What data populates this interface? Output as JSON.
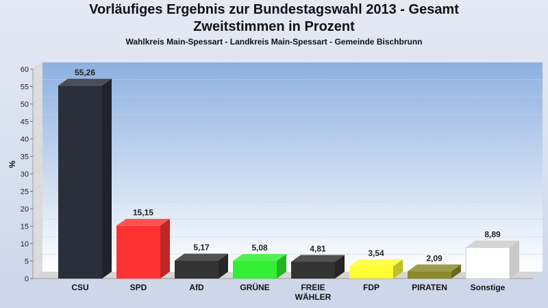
{
  "chart_data": {
    "type": "bar",
    "title": "Vorläufiges Ergebnis zur Bundestagswahl 2013 - Gesamt",
    "title2": "Zweitstimmen in Prozent",
    "subtitle": "Wahlkreis Main-Spessart - Landkreis Main-Spessart - Gemeinde Bischbrunn",
    "ylabel": "%",
    "xlabel": "",
    "ylim": [
      0,
      60
    ],
    "yticks": [
      0,
      5,
      10,
      15,
      20,
      25,
      30,
      35,
      40,
      45,
      50,
      55,
      60
    ],
    "grid": true,
    "categories": [
      "CSU",
      "SPD",
      "AfD",
      "GRÜNE",
      "FREIE WÄHLER",
      "FDP",
      "PIRATEN",
      "Sonstige"
    ],
    "category_lines": [
      [
        "CSU"
      ],
      [
        "SPD"
      ],
      [
        "AfD"
      ],
      [
        "GRÜNE"
      ],
      [
        "FREIE",
        "WÄHLER"
      ],
      [
        "FDP"
      ],
      [
        "PIRATEN"
      ],
      [
        "Sonstige"
      ]
    ],
    "values": [
      55.26,
      15.15,
      5.17,
      5.08,
      4.81,
      3.54,
      2.09,
      8.89
    ],
    "value_labels": [
      "55,26",
      "15,15",
      "5,17",
      "5,08",
      "4,81",
      "3,54",
      "2,09",
      "8,89"
    ],
    "colors": [
      "#2b2f3a",
      "#ff3333",
      "#333333",
      "#33ee33",
      "#333333",
      "#ffff33",
      "#8b8a2a",
      "#ffffff"
    ]
  }
}
